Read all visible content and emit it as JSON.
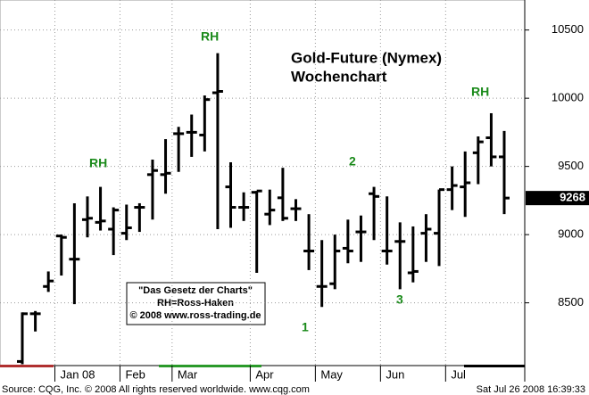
{
  "chart_data": {
    "type": "ohlc",
    "title": "Gold-Future (Nymex)",
    "subtitle": "Wochenchart",
    "categories": [
      null,
      null,
      null,
      "Jan 08",
      null,
      null,
      null,
      null,
      "Feb",
      null,
      null,
      null,
      "Mar",
      null,
      null,
      null,
      null,
      null,
      "Apr",
      null,
      null,
      null,
      null,
      "May",
      null,
      null,
      null,
      null,
      "Jun",
      null,
      null,
      null,
      null,
      "Jul",
      null,
      null,
      null,
      null
    ],
    "open": [
      8070,
      8420,
      8620,
      8990,
      8820,
      9110,
      9090,
      9040,
      9010,
      9200,
      9440,
      9440,
      9740,
      9750,
      9730,
      10040,
      9350,
      9200,
      9310,
      9150,
      9270,
      9190,
      8880,
      8620,
      8640,
      8900,
      9020,
      9300,
      8880,
      8950,
      8720,
      9010,
      9010,
      9330,
      9350,
      9600,
      9710,
      9570
    ],
    "high": [
      8430,
      8440,
      8730,
      9000,
      9230,
      9280,
      9350,
      9200,
      9220,
      9230,
      9550,
      9700,
      9790,
      9880,
      10020,
      10330,
      9530,
      9310,
      9320,
      9330,
      9490,
      9260,
      9150,
      8960,
      9000,
      9110,
      9140,
      9350,
      9280,
      9090,
      9060,
      9150,
      9330,
      9500,
      9610,
      9720,
      9890,
      9760
    ],
    "low": [
      8050,
      8290,
      8580,
      8700,
      8490,
      8980,
      9030,
      8850,
      8960,
      9020,
      9110,
      9300,
      9460,
      9570,
      9610,
      9040,
      9050,
      9100,
      8720,
      9070,
      9100,
      9100,
      8740,
      8470,
      8600,
      8790,
      8800,
      8960,
      8780,
      8600,
      8650,
      8800,
      8770,
      9180,
      9130,
      9370,
      9500,
      9150
    ],
    "close": [
      8420,
      8420,
      8660,
      8980,
      8820,
      9120,
      9100,
      9180,
      9050,
      9200,
      9470,
      9450,
      9740,
      9750,
      9990,
      10050,
      9200,
      9200,
      9320,
      9180,
      9120,
      9190,
      8880,
      8620,
      8880,
      8880,
      9020,
      9280,
      8880,
      8950,
      8730,
      9040,
      9330,
      9360,
      9380,
      9680,
      9570,
      9268
    ],
    "last_price": 9268,
    "color": "#000000",
    "annotation_color": "#1a8a1a",
    "ylim": [
      8040,
      10720
    ],
    "yticks": [
      8500,
      9000,
      9500,
      10000,
      10500
    ],
    "grid": true,
    "annotations": [
      "RH",
      "RH",
      "RH",
      "1",
      "2",
      "3"
    ],
    "note_lines": [
      "\"Das Gesetz der Charts\"",
      "RH=Ross-Haken",
      "© 2008 www.ross-trading.de"
    ],
    "source": "Source: CQG, Inc. © 2008 All rights reserved worldwide. www.cqg.com",
    "timestamp": "Sat Jul 26 2008 16:39:33"
  }
}
